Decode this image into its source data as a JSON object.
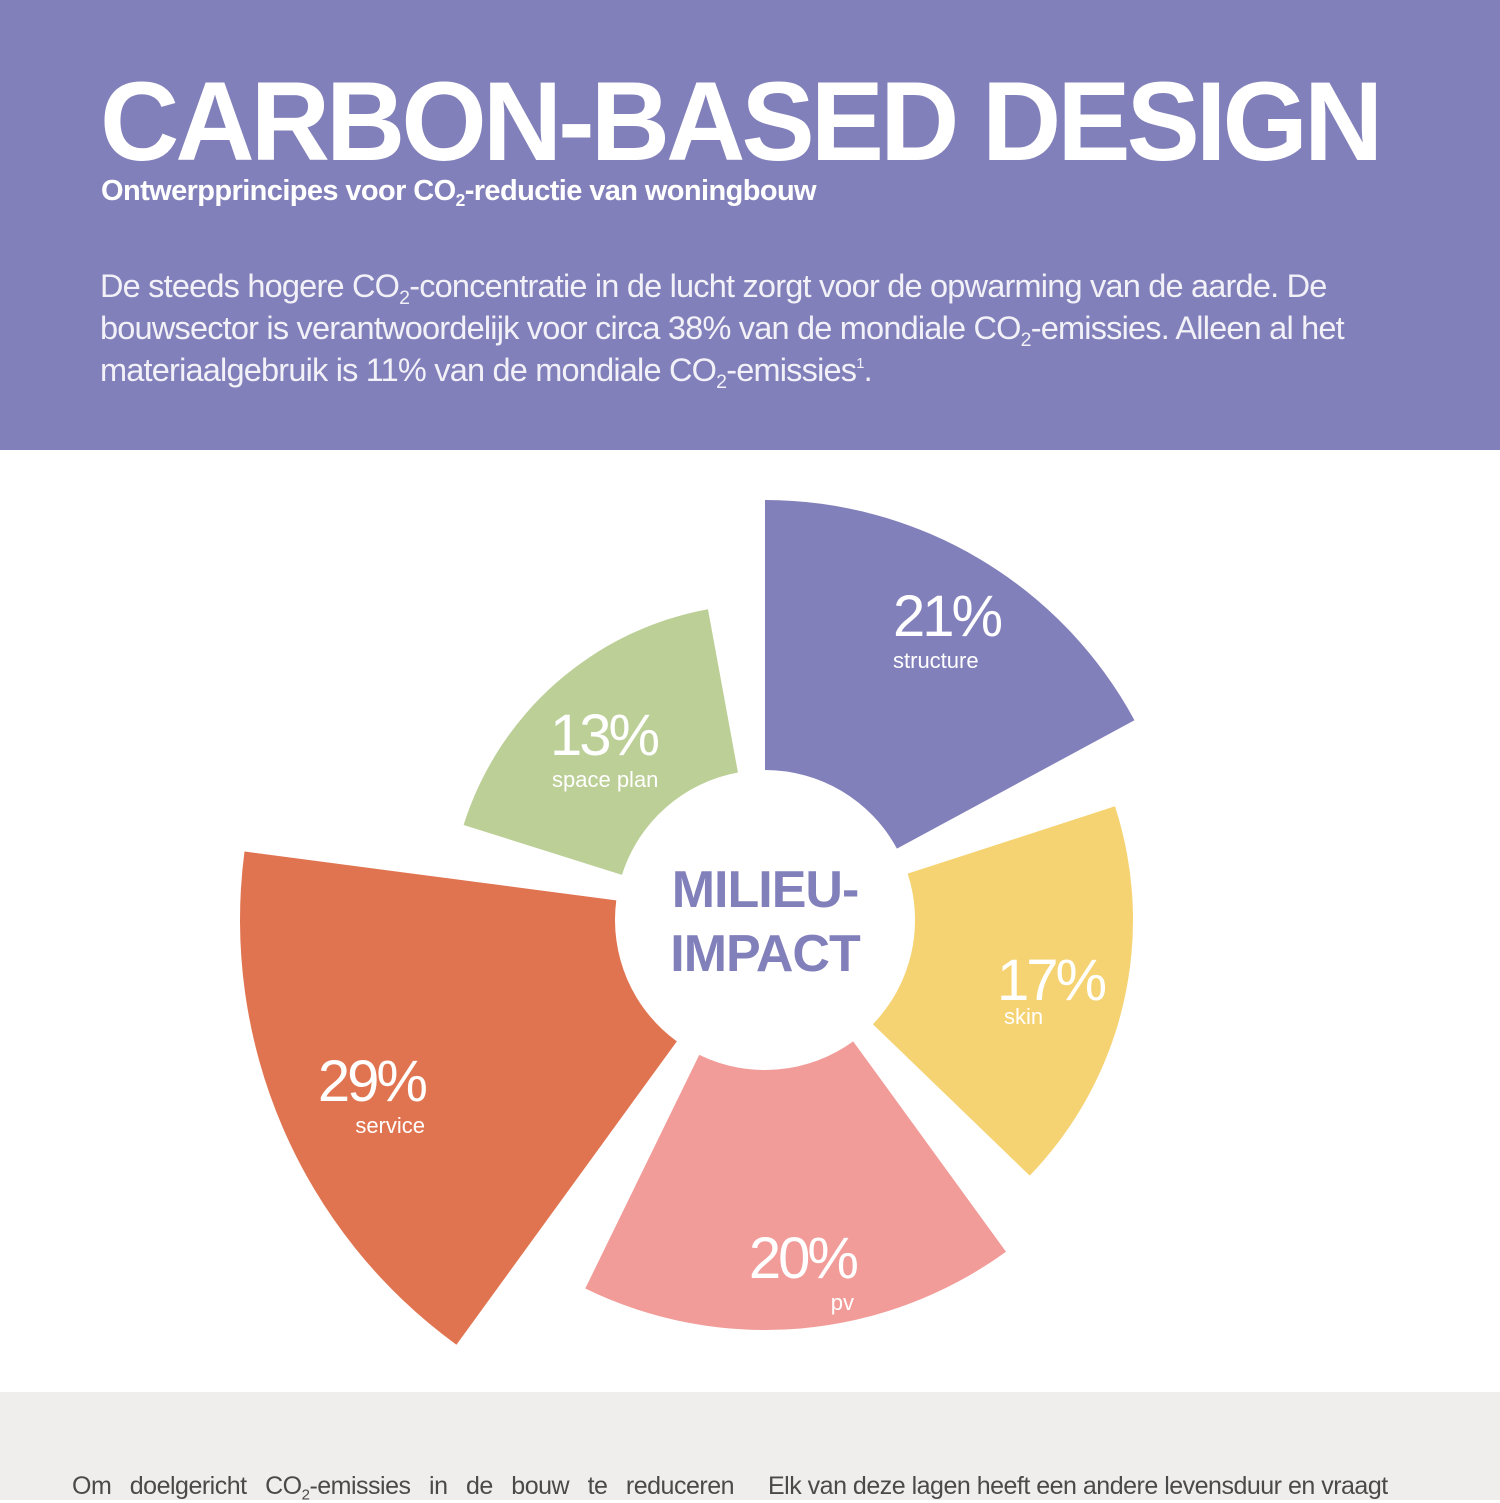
{
  "header": {
    "title": "CARBON-BASED DESIGN",
    "subtitle_pre": "Ontwerpprincipes voor CO",
    "subtitle_sub": "2",
    "subtitle_post": "-reductie van woningbouw",
    "intro": {
      "p1": "De steeds hogere CO",
      "s1": "2",
      "p2": "-concentratie in de lucht zorgt voor de opwarming van de aarde. De bouwsector is verantwoordelijk voor circa 38% van de mondiale CO",
      "s2": "2",
      "p3": "-emissies. Alleen al het materiaalgebruik is 11% van de mondiale CO",
      "s3": "2",
      "p4": "-emissies",
      "footnote": "1",
      "p5": "."
    },
    "background_color": "#8280ba"
  },
  "chart_data": {
    "type": "pie",
    "variant": "polar-area (rose) with central hole",
    "title": "MILIEU-IMPACT",
    "center_label_line1": "MILIEU-",
    "center_label_line2": "IMPACT",
    "categories": [
      "structure",
      "skin",
      "pv",
      "service",
      "space plan"
    ],
    "values": [
      21,
      17,
      20,
      29,
      13
    ],
    "unit": "%",
    "colors": [
      "#8280ba",
      "#f6d372",
      "#f19c98",
      "#e17450",
      "#bccf96"
    ],
    "legend": "inline labels"
  },
  "slices": [
    {
      "pct": "21%",
      "name": "structure"
    },
    {
      "pct": "17%",
      "name": "skin"
    },
    {
      "pct": "20%",
      "name": "pv"
    },
    {
      "pct": "29%",
      "name": "service"
    },
    {
      "pct": "13%",
      "name": "space plan"
    }
  ],
  "footer": {
    "col1_pre": "Om doelgericht CO",
    "col1_sub": "2",
    "col1_post": "-emissies in de bouw te reduceren",
    "col2": "Elk van deze lagen heeft een andere levensduur en vraagt"
  }
}
